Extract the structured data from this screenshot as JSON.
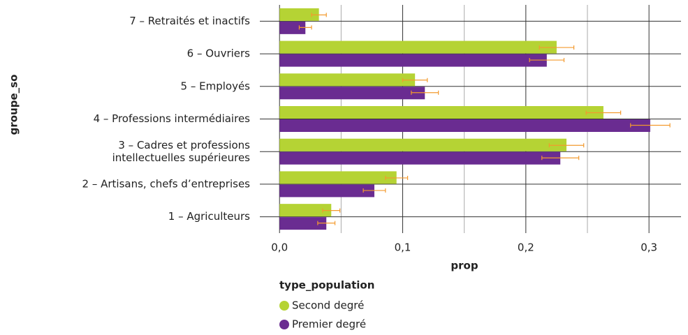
{
  "chart_data": {
    "type": "bar",
    "orientation": "horizontal",
    "y_label": "groupe_so",
    "x_label": "prop",
    "legend_title": "type_population",
    "categories": [
      "1 – Agriculteurs",
      "2 – Artisans, chefs d’entreprises",
      "3 – Cadres et professions\nintellectuelles supérieures",
      "4 – Professions intermédiaires",
      "5 – Employés",
      "6 – Ouvriers",
      "7 – Retraités et inactifs"
    ],
    "series": [
      {
        "name": "Second degré",
        "color": "#b5d334",
        "values": [
          0.042,
          0.095,
          0.233,
          0.263,
          0.11,
          0.225,
          0.032
        ],
        "errors": [
          0.007,
          0.009,
          0.014,
          0.014,
          0.01,
          0.014,
          0.006
        ]
      },
      {
        "name": "Premier degré",
        "color": "#6a2c91",
        "values": [
          0.038,
          0.077,
          0.228,
          0.301,
          0.118,
          0.217,
          0.021
        ],
        "errors": [
          0.007,
          0.009,
          0.015,
          0.016,
          0.011,
          0.014,
          0.005
        ]
      }
    ],
    "error_color": "#f39a2e",
    "xlim": [
      -0.016,
      0.326
    ],
    "xticks": [
      {
        "value": 0,
        "label": "0,0"
      },
      {
        "value": 0.1,
        "label": "0,1"
      },
      {
        "value": 0.2,
        "label": "0,2"
      },
      {
        "value": 0.3,
        "label": "0,3"
      }
    ],
    "minor_xticks": [
      0.05,
      0.15,
      0.25
    ],
    "grid": true
  }
}
